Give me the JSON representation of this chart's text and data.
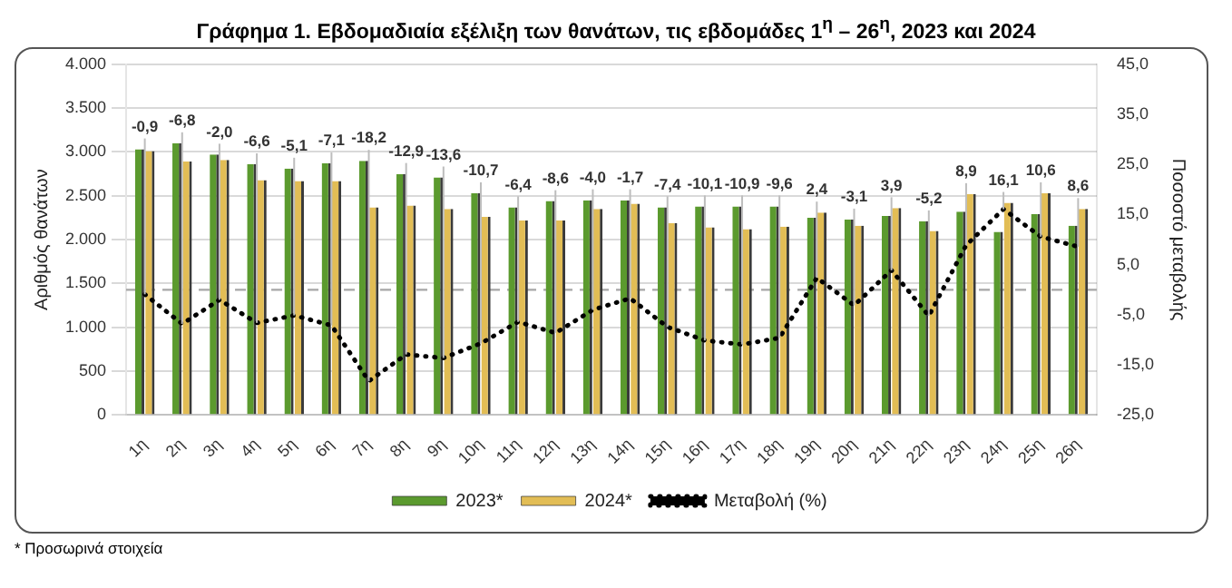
{
  "chart_data": {
    "type": "bar",
    "title": "Γράφημα 1.  Εβδομαδιαία εξέλιξη των θανάτων, τις εβδομάδες 1$^{η}$ – 26$^{η}$, 2023 και 2024",
    "ylabel": "Αριθμός θανάτων",
    "y2label": "Ποσοστό μεταβολής",
    "categories": [
      "1η",
      "2η",
      "3η",
      "4η",
      "5η",
      "6η",
      "7η",
      "8η",
      "9η",
      "10η",
      "11η",
      "12η",
      "13η",
      "14η",
      "15η",
      "16η",
      "17η",
      "18η",
      "19η",
      "20η",
      "21η",
      "22η",
      "23η",
      "24η",
      "25η",
      "26η"
    ],
    "series": [
      {
        "name": "2023*",
        "color": "#5b9a2e",
        "values": [
          3030,
          3100,
          2970,
          2860,
          2810,
          2870,
          2900,
          2750,
          2710,
          2530,
          2370,
          2440,
          2450,
          2450,
          2370,
          2380,
          2380,
          2380,
          2250,
          2230,
          2270,
          2210,
          2320,
          2090,
          2290,
          2160
        ]
      },
      {
        "name": "2024*",
        "color": "#e2bd55",
        "values": [
          3010,
          2890,
          2910,
          2680,
          2670,
          2670,
          2370,
          2390,
          2350,
          2260,
          2220,
          2220,
          2350,
          2410,
          2190,
          2140,
          2120,
          2150,
          2310,
          2160,
          2360,
          2100,
          2520,
          2420,
          2530,
          2350
        ]
      },
      {
        "name": "Μεταβολή (%)",
        "type": "line",
        "axis": "y2",
        "color": "#000000",
        "line_style": "dotted",
        "marker": "none",
        "values": [
          -0.9,
          -6.8,
          -2.0,
          -6.6,
          -5.1,
          -7.1,
          -18.2,
          -12.9,
          -13.6,
          -10.7,
          -6.4,
          -8.6,
          -4.0,
          -1.7,
          -7.4,
          -10.1,
          -10.9,
          -9.6,
          2.4,
          -3.1,
          3.9,
          -5.2,
          8.9,
          16.1,
          10.6,
          8.6
        ],
        "value_labels": [
          "-0,9",
          "-6,8",
          "-2,0",
          "-6,6",
          "-5,1",
          "-7,1",
          "-18,2",
          "-12,9",
          "-13,6",
          "-10,7",
          "-6,4",
          "-8,6",
          "-4,0",
          "-1,7",
          "-7,4",
          "-10,1",
          "-10,9",
          "-9,6",
          "2,4",
          "-3,1",
          "3,9",
          "-5,2",
          "8,9",
          "16,1",
          "10,6",
          "8,6"
        ]
      }
    ],
    "ylim": [
      0,
      4000
    ],
    "yticks": [
      {
        "value": 0,
        "label": "0"
      },
      {
        "value": 500,
        "label": "500"
      },
      {
        "value": 1000,
        "label": "1.000"
      },
      {
        "value": 1500,
        "label": "1.500"
      },
      {
        "value": 2000,
        "label": "2.000"
      },
      {
        "value": 2500,
        "label": "2.500"
      },
      {
        "value": 3000,
        "label": "3.000"
      },
      {
        "value": 3500,
        "label": "3.500"
      },
      {
        "value": 4000,
        "label": "4.000"
      }
    ],
    "y2lim": [
      -25,
      45
    ],
    "y2ticks": [
      {
        "value": -25,
        "label": "-25,0"
      },
      {
        "value": -15,
        "label": "-15,0"
      },
      {
        "value": -5,
        "label": "-5,0"
      },
      {
        "value": 5,
        "label": "5,0"
      },
      {
        "value": 15,
        "label": "15,0"
      },
      {
        "value": 25,
        "label": "25,0"
      },
      {
        "value": 35,
        "label": "35,0"
      },
      {
        "value": 45,
        "label": "45,0"
      }
    ],
    "grid": "y",
    "legend": "bottom",
    "ref_lines": [
      {
        "axis": "y2",
        "value": 0,
        "color": "#a6a6a6",
        "line_style": "dashed"
      }
    ],
    "annotations": [
      "* Προσωρινά στοιχεία"
    ]
  }
}
